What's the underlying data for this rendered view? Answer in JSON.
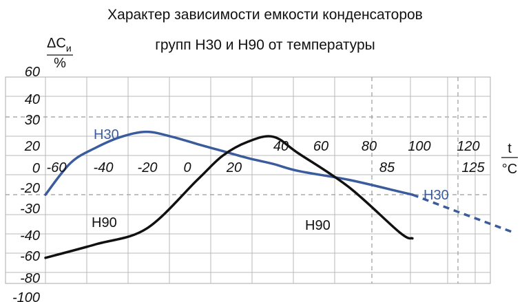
{
  "chart_data": {
    "type": "line",
    "title": "Характер зависимости емкости конденсаторов",
    "subtitle": "групп Н30 и Н90 от температуры",
    "ylabel": {
      "num": "ΔC",
      "sub": "и",
      "den": "%"
    },
    "xlabel": {
      "num": "t",
      "den": "°C"
    },
    "y_ticks": [
      "60",
      "40",
      "30",
      "20",
      "0",
      "-20",
      "-30",
      "-40",
      "-60",
      "-80",
      "-100"
    ],
    "x_ticks_main": [
      "-60",
      "-40",
      "-20",
      "0",
      "20",
      "40",
      "60",
      "80",
      "100",
      "120"
    ],
    "x_ticks_extra": [
      "85",
      "125"
    ],
    "grid": true,
    "series": [
      {
        "name": "Н30",
        "color": "#3a5b9c",
        "points": [
          [
            -60,
            -20
          ],
          [
            -50,
            2
          ],
          [
            -40,
            15
          ],
          [
            -30,
            22
          ],
          [
            -20,
            24
          ],
          [
            -10,
            22
          ],
          [
            0,
            18
          ],
          [
            10,
            12
          ],
          [
            20,
            6
          ],
          [
            30,
            1
          ],
          [
            40,
            -4
          ],
          [
            60,
            -10
          ],
          [
            80,
            -18
          ],
          [
            85,
            -20
          ]
        ],
        "extrapolated": [
          [
            85,
            -20
          ],
          [
            100,
            -28
          ],
          [
            125,
            -40
          ]
        ]
      },
      {
        "name": "Н90",
        "color": "#111111",
        "points": [
          [
            -60,
            -62
          ],
          [
            -40,
            -50
          ],
          [
            -20,
            -38
          ],
          [
            0,
            -10
          ],
          [
            10,
            8
          ],
          [
            20,
            20
          ],
          [
            30,
            22
          ],
          [
            40,
            10
          ],
          [
            60,
            -15
          ],
          [
            80,
            -40
          ],
          [
            85,
            -45
          ]
        ]
      }
    ],
    "series_labels": [
      "Н30",
      "Н30",
      "Н90",
      "Н90"
    ]
  }
}
